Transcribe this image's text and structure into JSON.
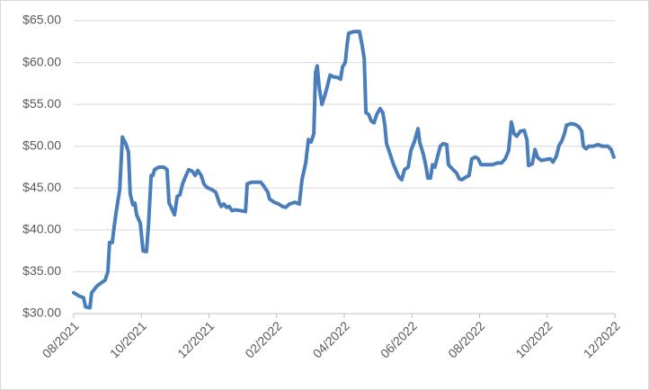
{
  "chart_data": {
    "type": "line",
    "color": "#4a7ebb",
    "grid": true,
    "xlim": [
      0,
      16
    ],
    "xticks": [
      {
        "value": 0,
        "label": "08/2021"
      },
      {
        "value": 2,
        "label": "10/2021"
      },
      {
        "value": 4,
        "label": "12/2021"
      },
      {
        "value": 6,
        "label": "02/2022"
      },
      {
        "value": 8,
        "label": "04/2022"
      },
      {
        "value": 10,
        "label": "06/2022"
      },
      {
        "value": 12,
        "label": "08/2022"
      },
      {
        "value": 14,
        "label": "10/2022"
      },
      {
        "value": 16,
        "label": "12/2022"
      }
    ],
    "ylim": [
      30,
      65
    ],
    "yticks": [
      {
        "value": 30,
        "label": "$30.00"
      },
      {
        "value": 35,
        "label": "$35.00"
      },
      {
        "value": 40,
        "label": "$40.00"
      },
      {
        "value": 45,
        "label": "$45.00"
      },
      {
        "value": 50,
        "label": "$50.00"
      },
      {
        "value": 55,
        "label": "$55.00"
      },
      {
        "value": 60,
        "label": "$60.00"
      },
      {
        "value": 65,
        "label": "$65.00"
      }
    ],
    "x": [
      0,
      0.16,
      0.29,
      0.35,
      0.48,
      0.53,
      0.69,
      0.82,
      0.93,
      1.01,
      1.06,
      1.14,
      1.2,
      1.25,
      1.36,
      1.44,
      1.54,
      1.62,
      1.67,
      1.75,
      1.81,
      1.86,
      1.97,
      2.05,
      2.15,
      2.21,
      2.29,
      2.34,
      2.39,
      2.52,
      2.66,
      2.76,
      2.82,
      2.87,
      2.98,
      3.06,
      3.14,
      3.22,
      3.32,
      3.4,
      3.51,
      3.59,
      3.67,
      3.77,
      3.85,
      3.93,
      4.09,
      4.2,
      4.31,
      4.36,
      4.44,
      4.52,
      4.6,
      4.68,
      4.78,
      4.94,
      5.08,
      5.13,
      5.26,
      5.4,
      5.53,
      5.61,
      5.74,
      5.79,
      5.93,
      6.06,
      6.17,
      6.27,
      6.38,
      6.54,
      6.67,
      6.75,
      6.86,
      6.94,
      7.02,
      7.1,
      7.15,
      7.2,
      7.26,
      7.34,
      7.42,
      7.49,
      7.58,
      7.68,
      7.81,
      7.89,
      7.95,
      8.03,
      8.08,
      8.13,
      8.29,
      8.45,
      8.53,
      8.59,
      8.64,
      8.72,
      8.8,
      8.88,
      8.96,
      9.06,
      9.14,
      9.2,
      9.25,
      9.36,
      9.44,
      9.54,
      9.62,
      9.7,
      9.78,
      9.89,
      9.97,
      10.07,
      10.18,
      10.23,
      10.34,
      10.42,
      10.47,
      10.55,
      10.61,
      10.68,
      10.76,
      10.84,
      10.92,
      11.03,
      11.08,
      11.19,
      11.32,
      11.4,
      11.48,
      11.59,
      11.69,
      11.77,
      11.88,
      11.96,
      12.04,
      12.2,
      12.39,
      12.52,
      12.65,
      12.76,
      12.86,
      12.94,
      13.02,
      13.1,
      13.21,
      13.32,
      13.4,
      13.45,
      13.56,
      13.64,
      13.71,
      13.82,
      13.95,
      14.09,
      14.17,
      14.27,
      14.35,
      14.43,
      14.51,
      14.57,
      14.7,
      14.83,
      14.94,
      15.02,
      15.07,
      15.15,
      15.23,
      15.36,
      15.5,
      15.63,
      15.79,
      15.89,
      15.97
    ],
    "values": [
      32.5,
      32.1,
      31.9,
      30.8,
      30.7,
      32.5,
      33.3,
      33.7,
      34.0,
      35,
      38.5,
      38.5,
      40.5,
      42,
      44.8,
      51.1,
      50.3,
      49.3,
      44.3,
      43.0,
      43.2,
      41.8,
      40.8,
      37.5,
      37.4,
      40.5,
      46.5,
      46.5,
      47.2,
      47.5,
      47.5,
      47.2,
      43.2,
      42.8,
      41.8,
      44,
      44.2,
      45.5,
      46.5,
      47.2,
      47,
      46.5,
      47.1,
      46.5,
      45.5,
      45.1,
      44.8,
      44.5,
      43.2,
      42.8,
      43.1,
      42.7,
      42.8,
      42.3,
      42.4,
      42.3,
      42.2,
      45.5,
      45.7,
      45.7,
      45.7,
      45.3,
      44.5,
      43.7,
      43.3,
      43.1,
      42.8,
      42.7,
      43.1,
      43.3,
      43.1,
      46.0,
      48,
      50.8,
      50.5,
      51.5,
      58.8,
      59.6,
      57,
      55.0,
      56,
      57,
      58.5,
      58.3,
      58.2,
      58,
      59.5,
      60,
      62,
      63.5,
      63.7,
      63.7,
      62,
      60.5,
      54,
      53.8,
      53,
      52.8,
      53.8,
      54.5,
      54,
      52.5,
      50.3,
      49,
      48,
      47,
      46.3,
      46,
      47.2,
      47.5,
      49.5,
      50.5,
      52.1,
      50.5,
      49,
      47.5,
      46.2,
      46.2,
      47.8,
      47.5,
      48.8,
      50,
      50.3,
      50.2,
      47.8,
      47.3,
      46.8,
      46.1,
      46,
      46.3,
      46.5,
      48.5,
      48.7,
      48.5,
      47.8,
      47.8,
      47.8,
      48.0,
      48.0,
      48.5,
      49.5,
      52.9,
      51.5,
      51.2,
      51.8,
      51.9,
      50.8,
      47.7,
      47.9,
      49.6,
      48.7,
      48.3,
      48.4,
      48.5,
      48.1,
      48.8,
      50.1,
      50.6,
      51.5,
      52.5,
      52.7,
      52.6,
      52.3,
      51.8,
      50,
      49.7,
      50,
      50,
      50.2,
      50,
      50,
      49.6,
      48.7
    ]
  }
}
